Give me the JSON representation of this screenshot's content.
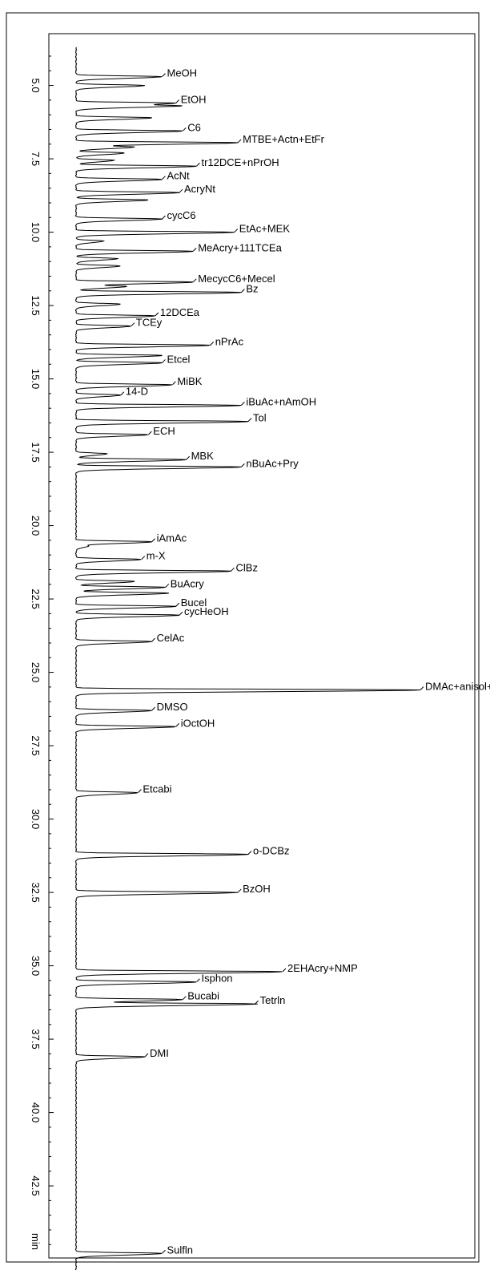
{
  "chart_data": {
    "type": "line",
    "title": "",
    "axis_unit_label": "min",
    "time_range": [
      3.7,
      45.5
    ],
    "tick_labels": [
      "5.0",
      "7.5",
      "10.0",
      "12.5",
      "15.0",
      "17.5",
      "20.0",
      "22.5",
      "25.0",
      "27.5",
      "30.0",
      "32.5",
      "35.0",
      "37.5",
      "40.0",
      "42.5"
    ],
    "tick_values": [
      5.0,
      7.5,
      10.0,
      12.5,
      15.0,
      17.5,
      20.0,
      22.5,
      25.0,
      27.5,
      30.0,
      32.5,
      35.0,
      37.5,
      40.0,
      42.5
    ],
    "minor_tick_step": 0.5,
    "signal_max": 100,
    "peaks": [
      {
        "label": "MeOH",
        "time": 4.7,
        "height": 25
      },
      {
        "label": "",
        "time": 5.0,
        "height": 20
      },
      {
        "label": "EtOH",
        "time": 5.6,
        "height": 29
      },
      {
        "label": "",
        "time": 5.7,
        "height": 25
      },
      {
        "label": "",
        "time": 6.1,
        "height": 22
      },
      {
        "label": "C6",
        "time": 6.55,
        "height": 31
      },
      {
        "label": "MTBE+Actn+EtFr",
        "time": 6.95,
        "height": 47
      },
      {
        "label": "",
        "time": 7.1,
        "height": 16
      },
      {
        "label": "",
        "time": 7.3,
        "height": 14
      },
      {
        "label": "",
        "time": 7.55,
        "height": 11
      },
      {
        "label": "tr12DCE+nPrOH",
        "time": 7.75,
        "height": 35
      },
      {
        "label": "AcNt",
        "time": 8.2,
        "height": 25
      },
      {
        "label": "AcryNt",
        "time": 8.65,
        "height": 30
      },
      {
        "label": "",
        "time": 8.9,
        "height": 21
      },
      {
        "label": "cycC6",
        "time": 9.55,
        "height": 25
      },
      {
        "label": "EtAc+MEK",
        "time": 10.0,
        "height": 46
      },
      {
        "label": "",
        "time": 10.3,
        "height": 8
      },
      {
        "label": "MeAcry+111TCEa",
        "time": 10.65,
        "height": 34
      },
      {
        "label": "",
        "time": 10.9,
        "height": 12
      },
      {
        "label": "",
        "time": 11.15,
        "height": 13
      },
      {
        "label": "MecycC6+Mecel",
        "time": 11.7,
        "height": 34
      },
      {
        "label": "",
        "time": 11.85,
        "height": 14
      },
      {
        "label": "Bz",
        "time": 12.05,
        "height": 48
      },
      {
        "label": "",
        "time": 12.45,
        "height": 13
      },
      {
        "label": "12DCEa",
        "time": 12.85,
        "height": 23
      },
      {
        "label": "TCEy",
        "time": 13.2,
        "height": 16
      },
      {
        "label": "nPrAc",
        "time": 13.85,
        "height": 39
      },
      {
        "label": "",
        "time": 14.2,
        "height": 25
      },
      {
        "label": "Etcel",
        "time": 14.45,
        "height": 25
      },
      {
        "label": "MiBK",
        "time": 15.2,
        "height": 28
      },
      {
        "label": "14-D",
        "time": 15.55,
        "height": 13
      },
      {
        "label": "iBuAc+nAmOH",
        "time": 15.9,
        "height": 48
      },
      {
        "label": "Tol",
        "time": 16.45,
        "height": 50
      },
      {
        "label": "ECH",
        "time": 16.9,
        "height": 21
      },
      {
        "label": "",
        "time": 17.55,
        "height": 9
      },
      {
        "label": "MBK",
        "time": 17.75,
        "height": 32
      },
      {
        "label": "nBuAc+Pry",
        "time": 18.0,
        "height": 48
      },
      {
        "label": "iAmAc",
        "time": 20.55,
        "height": 22
      },
      {
        "label": "",
        "time": 20.7,
        "height": 3
      },
      {
        "label": "m-X",
        "time": 21.15,
        "height": 19
      },
      {
        "label": "ClBz",
        "time": 21.55,
        "height": 45
      },
      {
        "label": "",
        "time": 21.9,
        "height": 17
      },
      {
        "label": "BuAcry",
        "time": 22.1,
        "height": 26
      },
      {
        "label": "",
        "time": 22.3,
        "height": 27
      },
      {
        "label": "Bucel",
        "time": 22.75,
        "height": 29
      },
      {
        "label": "cycHeOH",
        "time": 23.05,
        "height": 30
      },
      {
        "label": "CelAc",
        "time": 23.95,
        "height": 22
      },
      {
        "label": "DMAc+anisol+chxon",
        "time": 25.6,
        "height": 100
      },
      {
        "label": "DMSO",
        "time": 26.3,
        "height": 22
      },
      {
        "label": "iOctOH",
        "time": 26.85,
        "height": 29
      },
      {
        "label": "Etcabi",
        "time": 29.1,
        "height": 18
      },
      {
        "label": "o-DCBz",
        "time": 31.2,
        "height": 50
      },
      {
        "label": "BzOH",
        "time": 32.5,
        "height": 47
      },
      {
        "label": "",
        "time": 33.45,
        "height": 0
      },
      {
        "label": "",
        "time": 34.05,
        "height": 0
      },
      {
        "label": "2EHAcry+NMP",
        "time": 35.2,
        "height": 60
      },
      {
        "label": "Isphon",
        "time": 35.55,
        "height": 35
      },
      {
        "label": "Bucabi",
        "time": 36.15,
        "height": 31
      },
      {
        "label": "Tetrln",
        "time": 36.3,
        "height": 52
      },
      {
        "label": "DMI",
        "time": 38.1,
        "height": 20
      },
      {
        "label": "",
        "time": 40.25,
        "height": 0
      },
      {
        "label": "Sulfln",
        "time": 44.8,
        "height": 25
      }
    ]
  }
}
